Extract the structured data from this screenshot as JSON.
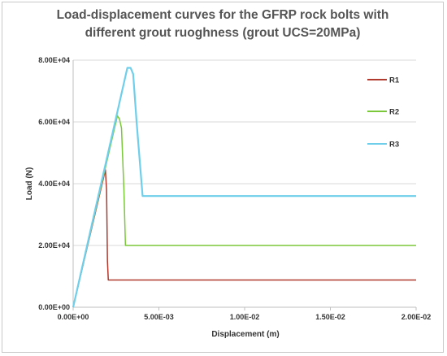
{
  "chart_data": {
    "type": "line",
    "title_line1": "Load-displacement curves for the GFRP rock bolts with",
    "title_line2": "different grout ruoghness (grout UCS=20MPa)",
    "xlabel": "Displacement (m)",
    "ylabel": "Load (N)",
    "xlim": [
      0,
      0.02
    ],
    "ylim": [
      0,
      80000
    ],
    "x_ticks": [
      {
        "value": 0,
        "label": "0.00E+00"
      },
      {
        "value": 0.005,
        "label": "5.00E-03"
      },
      {
        "value": 0.01,
        "label": "1.00E-02"
      },
      {
        "value": 0.015,
        "label": "1.50E-02"
      },
      {
        "value": 0.02,
        "label": "2.00E-02"
      }
    ],
    "y_ticks": [
      {
        "value": 0,
        "label": "0.00E+00"
      },
      {
        "value": 20000,
        "label": "2.00E+04"
      },
      {
        "value": 40000,
        "label": "4.00E+04"
      },
      {
        "value": 60000,
        "label": "6.00E+04"
      },
      {
        "value": 80000,
        "label": "8.00E+04"
      }
    ],
    "grid": "horizontal",
    "legend_position": "right",
    "series": [
      {
        "name": "R1",
        "color": "#b03a2e",
        "x": [
          0,
          0.00188,
          0.00195,
          0.002,
          0.00205,
          0.02
        ],
        "y": [
          0,
          44500,
          38000,
          15000,
          8800,
          8800
        ]
      },
      {
        "name": "R2",
        "color": "#7bc93a",
        "x": [
          0,
          0.00258,
          0.0027,
          0.00282,
          0.00296,
          0.00305,
          0.02
        ],
        "y": [
          0,
          62000,
          61000,
          58000,
          38000,
          20000,
          20000
        ]
      },
      {
        "name": "R3",
        "color": "#6fcfea",
        "x": [
          0,
          0.00316,
          0.00335,
          0.0035,
          0.0037,
          0.00405,
          0.02
        ],
        "y": [
          0,
          77500,
          77500,
          75500,
          60000,
          36000,
          36000
        ]
      }
    ]
  }
}
